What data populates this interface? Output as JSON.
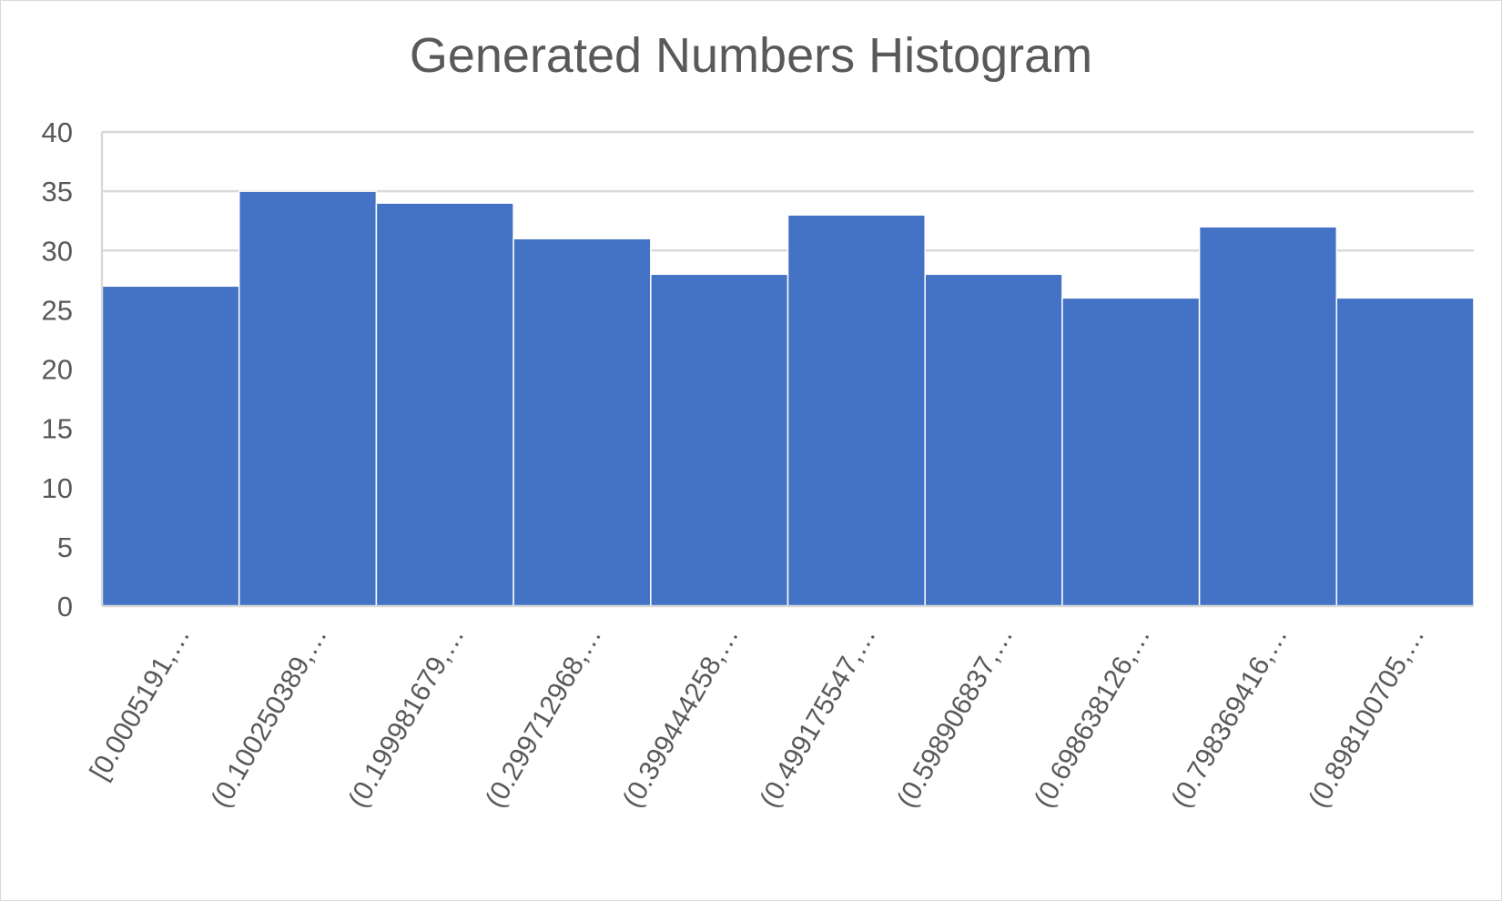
{
  "chart_data": {
    "type": "bar",
    "title": "Generated Numbers Histogram",
    "xlabel": "",
    "ylabel": "",
    "categories": [
      "[0.0005191,…",
      "(0.100250389,…",
      "(0.199981679,…",
      "(0.299712968,…",
      "(0.399444258,…",
      "(0.499175547,…",
      "(0.598906837,…",
      "(0.698638126,…",
      "(0.798369416,…",
      "(0.898100705,…"
    ],
    "values": [
      27,
      35,
      34,
      31,
      28,
      33,
      28,
      26,
      32,
      26
    ],
    "ylim": [
      0,
      40
    ],
    "yticks": [
      0,
      5,
      10,
      15,
      20,
      25,
      30,
      35,
      40
    ],
    "grid": true,
    "legend": "none",
    "colors": {
      "bar": "#4472C4",
      "grid": "#d9d9d9",
      "axis": "#d9d9d9",
      "text": "#595959"
    }
  }
}
